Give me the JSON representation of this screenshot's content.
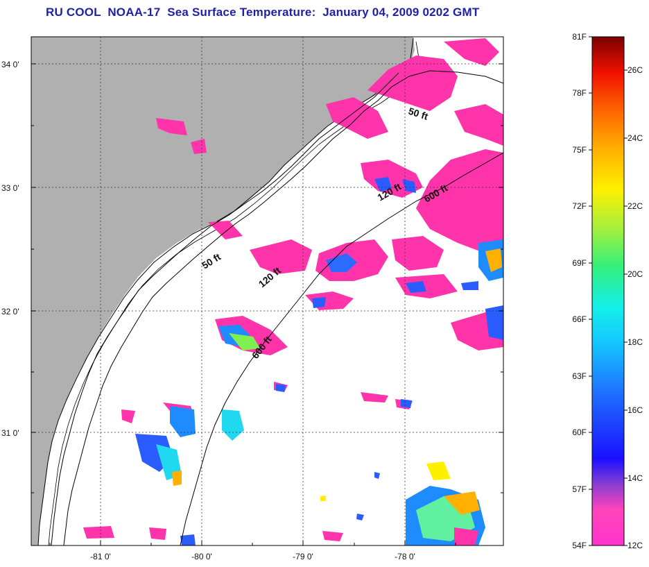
{
  "title": "RU COOL  NOAA-17  Sea Surface Temperature:  January 04, 2009 0202 GMT",
  "map": {
    "lat_labels": [
      "34 0'",
      "33 0'",
      "32 0'",
      "31 0'"
    ],
    "lon_labels": [
      "-81 0'",
      "-80 0'",
      "-79 0'",
      "-78 0'"
    ],
    "isobaths": [
      "50 ft",
      "50 ft",
      "120 ft",
      "120 ft",
      "600 ft",
      "600 ft"
    ]
  },
  "colorbar": {
    "fahrenheit": [
      "81F",
      "78F",
      "75F",
      "72F",
      "69F",
      "66F",
      "63F",
      "60F",
      "57F",
      "54F"
    ],
    "celsius": [
      "26C",
      "24C",
      "22C",
      "20C",
      "18C",
      "16C",
      "14C",
      "12C"
    ]
  },
  "colors": {
    "title": "#1f1fa8",
    "land": "#b0b0b0",
    "cloud_mask": "#ff33aa",
    "ocean_no_data": "#ffffff"
  }
}
